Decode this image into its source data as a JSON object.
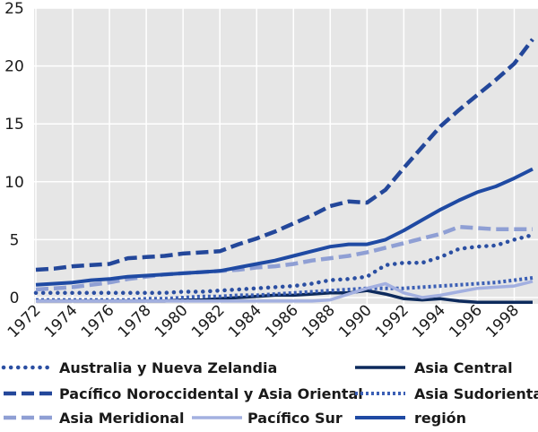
{
  "chart_data": {
    "type": "line",
    "x": [
      1972,
      1973,
      1974,
      1975,
      1976,
      1977,
      1978,
      1979,
      1980,
      1981,
      1982,
      1983,
      1984,
      1985,
      1986,
      1987,
      1988,
      1989,
      1990,
      1991,
      1992,
      1993,
      1994,
      1995,
      1996,
      1997,
      1998,
      1999
    ],
    "xticks": [
      "1972",
      "1974",
      "1976",
      "1978",
      "1980",
      "1982",
      "1984",
      "1986",
      "1988",
      "1990",
      "1992",
      "1994",
      "1996",
      "1998"
    ],
    "ylim": [
      0,
      25
    ],
    "yticks": [
      "0",
      "5",
      "10",
      "15",
      "20",
      "25"
    ],
    "plot_background": "#e6e6e6",
    "grid": true,
    "legend_position": "bottom",
    "series": [
      {
        "name": "Australia y Nueva Zelandia",
        "color": "#2b4fa2",
        "style": "dotted",
        "values": [
          0.4,
          0.4,
          0.4,
          0.4,
          0.4,
          0.4,
          0.4,
          0.4,
          0.5,
          0.5,
          0.6,
          0.7,
          0.8,
          0.9,
          1.0,
          1.2,
          1.5,
          1.6,
          1.8,
          2.8,
          3.0,
          3.0,
          3.5,
          4.2,
          4.4,
          4.5,
          5.0,
          5.4
        ]
      },
      {
        "name": "Asia Central",
        "color": "#0d2a5c",
        "style": "solid",
        "values": [
          -0.3,
          -0.3,
          -0.3,
          -0.3,
          -0.3,
          -0.3,
          -0.3,
          -0.3,
          -0.2,
          -0.2,
          -0.1,
          0.0,
          0.1,
          0.2,
          0.2,
          0.3,
          0.4,
          0.4,
          0.6,
          0.3,
          -0.1,
          -0.2,
          -0.1,
          -0.3,
          -0.4,
          -0.4,
          -0.4,
          -0.4
        ]
      },
      {
        "name": "Pacífico Noroccidental y Asia Oriental",
        "color": "#23479a",
        "style": "dashed",
        "values": [
          2.4,
          2.5,
          2.7,
          2.8,
          2.9,
          3.4,
          3.5,
          3.6,
          3.8,
          3.9,
          4.0,
          4.6,
          5.1,
          5.7,
          6.4,
          7.1,
          7.9,
          8.3,
          8.2,
          9.3,
          11.2,
          13.0,
          14.8,
          16.2,
          17.5,
          18.8,
          20.2,
          22.3
        ]
      },
      {
        "name": "Asia Sudoriental",
        "color": "#3b5fb5",
        "style": "dotted-dense",
        "values": [
          -0.2,
          -0.2,
          -0.2,
          -0.2,
          -0.2,
          -0.2,
          -0.1,
          -0.1,
          0.0,
          0.1,
          0.1,
          0.2,
          0.2,
          0.3,
          0.4,
          0.5,
          0.6,
          0.7,
          0.8,
          0.8,
          0.8,
          0.9,
          1.0,
          1.1,
          1.2,
          1.3,
          1.5,
          1.7
        ]
      },
      {
        "name": "Asia Meridional",
        "color": "#8f9fd4",
        "style": "dashed",
        "values": [
          0.7,
          0.8,
          0.9,
          1.1,
          1.3,
          1.6,
          1.8,
          2.0,
          2.1,
          2.2,
          2.3,
          2.4,
          2.6,
          2.7,
          2.9,
          3.2,
          3.4,
          3.6,
          3.9,
          4.3,
          4.7,
          5.1,
          5.5,
          6.1,
          6.0,
          5.9,
          5.9,
          5.9
        ]
      },
      {
        "name": "Pacífico Sur",
        "color": "#a3b0e0",
        "style": "solid",
        "values": [
          -0.3,
          -0.3,
          -0.3,
          -0.3,
          -0.3,
          -0.3,
          -0.3,
          -0.3,
          -0.3,
          -0.3,
          -0.3,
          -0.3,
          -0.3,
          -0.3,
          -0.3,
          -0.3,
          -0.2,
          0.3,
          0.8,
          1.2,
          0.4,
          0.0,
          0.2,
          0.5,
          0.8,
          0.9,
          1.0,
          1.4
        ]
      },
      {
        "name": "región",
        "color": "#1f4aa3",
        "style": "solid-thick",
        "values": [
          1.1,
          1.2,
          1.3,
          1.5,
          1.6,
          1.8,
          1.9,
          2.0,
          2.1,
          2.2,
          2.3,
          2.6,
          2.9,
          3.2,
          3.6,
          4.0,
          4.4,
          4.6,
          4.6,
          5.0,
          5.8,
          6.7,
          7.6,
          8.4,
          9.1,
          9.6,
          10.3,
          11.1
        ]
      }
    ]
  }
}
